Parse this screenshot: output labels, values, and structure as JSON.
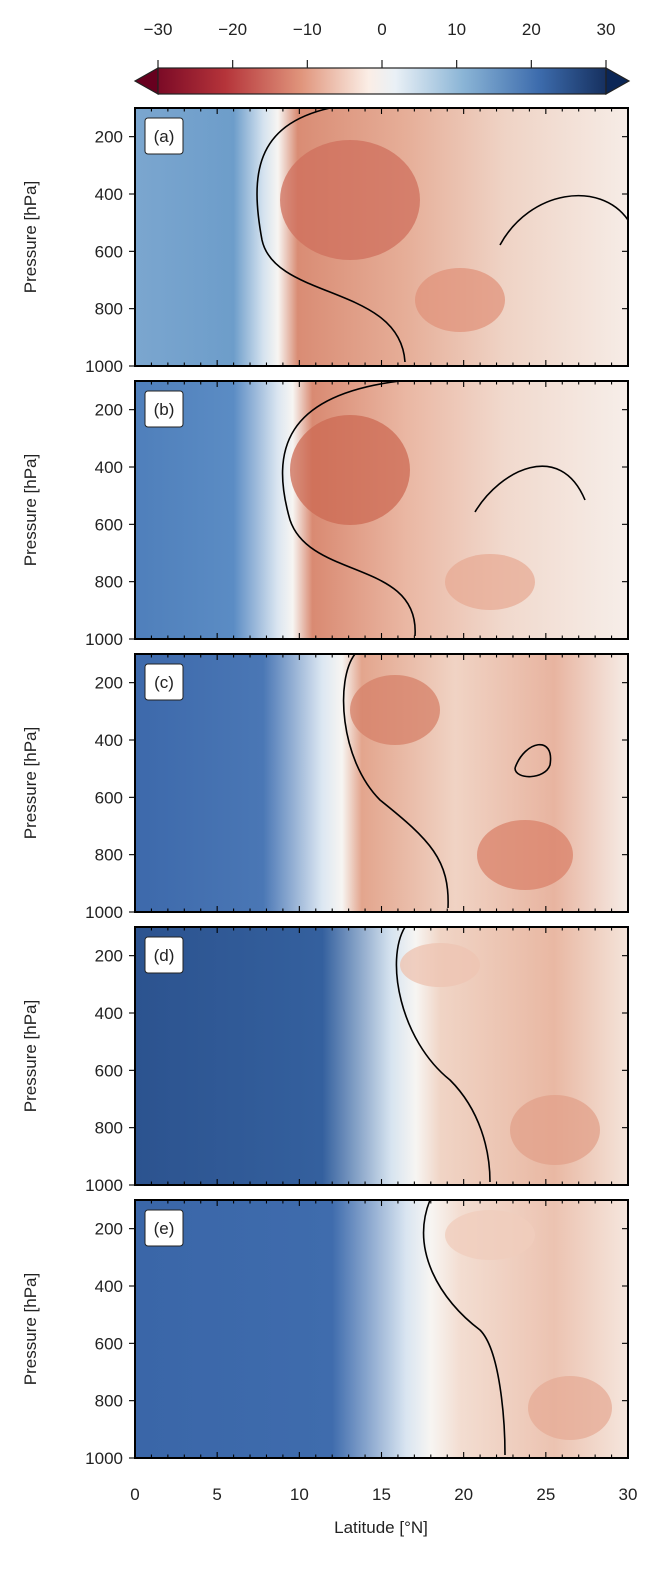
{
  "chart_data": {
    "type": "contour",
    "x_label": "Latitude [°N]",
    "x_ticks": [
      0,
      5,
      10,
      15,
      20,
      25,
      30
    ],
    "x_range": [
      0,
      30
    ],
    "y_label": "Pressure [hPa]",
    "y_ticks": [
      200,
      400,
      600,
      800,
      1000
    ],
    "y_range": [
      100,
      1000
    ],
    "colorbar": {
      "ticks": [
        -30,
        -20,
        -10,
        0,
        10,
        20,
        30
      ],
      "range": [
        -30,
        30
      ],
      "extend": "both",
      "colormap": "diverging red-white-blue",
      "negative_color": "#67001f",
      "positive_color": "#0b2656"
    },
    "panels": [
      {
        "label": "(a)",
        "zero_contour_lat_mid": 8.0,
        "max_positive": 17,
        "max_negative": -13
      },
      {
        "label": "(b)",
        "zero_contour_lat_mid": 9.0,
        "max_positive": 21,
        "max_negative": -13
      },
      {
        "label": "(c)",
        "zero_contour_lat_mid": 12.5,
        "max_positive": 24,
        "max_negative": -12
      },
      {
        "label": "(d)",
        "zero_contour_lat_mid": 17.0,
        "max_positive": 30,
        "max_negative": -8
      },
      {
        "label": "(e)",
        "zero_contour_lat_mid": 18.0,
        "max_positive": 26,
        "max_negative": -7
      }
    ]
  }
}
